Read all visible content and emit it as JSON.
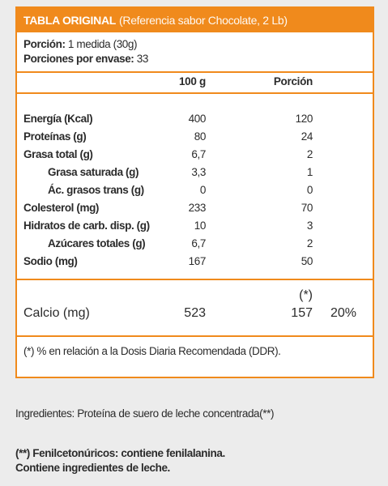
{
  "title": {
    "bold": "TABLA ORIGINAL",
    "reference": "(Referencia sabor Chocolate, 2 Lb)"
  },
  "serving": {
    "portion_label": "Porción:",
    "portion_value": "1 medida (30g)",
    "per_pack_label": "Porciones por envase:",
    "per_pack_value": "33"
  },
  "columns": {
    "per100": "100 g",
    "portion": "Porción"
  },
  "nutrients": [
    {
      "name": "Energía (Kcal)",
      "per100": "400",
      "portion": "120"
    },
    {
      "name": "Proteínas (g)",
      "per100": "80",
      "portion": "24"
    },
    {
      "name": "Grasa total (g)",
      "per100": "6,7",
      "portion": "2"
    },
    {
      "name": "Grasa saturada (g)",
      "per100": "3,3",
      "portion": "1"
    },
    {
      "name": "Ác. grasos trans (g)",
      "per100": "0",
      "portion": "0"
    },
    {
      "name": "Colesterol (mg)",
      "per100": "233",
      "portion": "70"
    },
    {
      "name": "Hidratos de carb. disp. (g)",
      "per100": "10",
      "portion": "3"
    },
    {
      "name": "Azúcares totales (g)",
      "per100": "6,7",
      "portion": "2"
    },
    {
      "name": "Sodio (mg)",
      "per100": "167",
      "portion": "50"
    }
  ],
  "calcium": {
    "star": "(*)",
    "name": "Calcio (mg)",
    "per100": "523",
    "portion": "157",
    "percent": "20%"
  },
  "footnote": "(*) % en relación a la Dosis Diaria Recomendada (DDR).",
  "ingredients": "Ingredientes: Proteína de suero de leche concentrada(**)",
  "warnings": [
    "(**) Fenilcetonúricos: contiene fenilalanina.",
    "Contiene ingredientes de leche."
  ]
}
